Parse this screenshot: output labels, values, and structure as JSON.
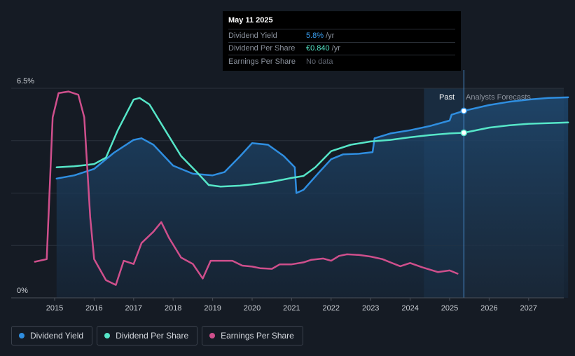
{
  "tooltip": {
    "date": "May 11 2025",
    "rows": [
      {
        "label": "Dividend Yield",
        "value": "5.8%",
        "unit": "/yr",
        "color": "#3a9ef0"
      },
      {
        "label": "Dividend Per Share",
        "value": "€0.840",
        "unit": "/yr",
        "color": "#56e6c8"
      },
      {
        "label": "Earnings Per Share",
        "value": "No data",
        "unit": "",
        "color": "#5f6570"
      }
    ]
  },
  "labels": {
    "past": "Past",
    "forecast": "Analysts Forecasts"
  },
  "legend": [
    {
      "label": "Dividend Yield",
      "color": "#2f8ee0"
    },
    {
      "label": "Dividend Per Share",
      "color": "#56e6c8"
    },
    {
      "label": "Earnings Per Share",
      "color": "#cf4f8c"
    }
  ],
  "chart_data": {
    "type": "line",
    "y_tick_labels": [
      "6.5%",
      "0%"
    ],
    "ylim": [
      0,
      6.5
    ],
    "xlim": [
      2014.0,
      2028.0
    ],
    "x_ticks": [
      2015,
      2016,
      2017,
      2018,
      2019,
      2020,
      2021,
      2022,
      2023,
      2024,
      2025,
      2026,
      2027
    ],
    "forecast_start": 2025.36,
    "shade_start": 2024.35,
    "series": [
      {
        "name": "Dividend Yield",
        "color": "#2f8ee0",
        "area": true,
        "points": [
          [
            2015.05,
            3.7
          ],
          [
            2015.5,
            3.8
          ],
          [
            2016.0,
            4.0
          ],
          [
            2016.5,
            4.5
          ],
          [
            2017.0,
            4.9
          ],
          [
            2017.2,
            4.95
          ],
          [
            2017.5,
            4.75
          ],
          [
            2018.0,
            4.1
          ],
          [
            2018.5,
            3.85
          ],
          [
            2019.0,
            3.8
          ],
          [
            2019.3,
            3.9
          ],
          [
            2019.7,
            4.4
          ],
          [
            2020.0,
            4.8
          ],
          [
            2020.4,
            4.75
          ],
          [
            2020.8,
            4.4
          ],
          [
            2021.08,
            4.05
          ],
          [
            2021.12,
            3.25
          ],
          [
            2021.3,
            3.35
          ],
          [
            2021.7,
            3.9
          ],
          [
            2022.0,
            4.3
          ],
          [
            2022.3,
            4.45
          ],
          [
            2022.7,
            4.47
          ],
          [
            2023.05,
            4.52
          ],
          [
            2023.1,
            4.95
          ],
          [
            2023.5,
            5.1
          ],
          [
            2024.0,
            5.2
          ],
          [
            2024.5,
            5.33
          ],
          [
            2025.0,
            5.5
          ],
          [
            2025.05,
            5.68
          ],
          [
            2025.36,
            5.8
          ],
          [
            2026.0,
            5.98
          ],
          [
            2026.5,
            6.08
          ],
          [
            2027.0,
            6.15
          ],
          [
            2027.5,
            6.2
          ],
          [
            2028.0,
            6.22
          ]
        ]
      },
      {
        "name": "Dividend Per Share",
        "color": "#56e6c8",
        "area": false,
        "points": [
          [
            2015.05,
            4.05
          ],
          [
            2015.5,
            4.08
          ],
          [
            2016.0,
            4.15
          ],
          [
            2016.3,
            4.35
          ],
          [
            2016.6,
            5.2
          ],
          [
            2017.0,
            6.15
          ],
          [
            2017.15,
            6.2
          ],
          [
            2017.4,
            6.0
          ],
          [
            2017.8,
            5.2
          ],
          [
            2018.2,
            4.4
          ],
          [
            2018.6,
            3.9
          ],
          [
            2018.9,
            3.5
          ],
          [
            2019.2,
            3.45
          ],
          [
            2019.7,
            3.48
          ],
          [
            2020.0,
            3.52
          ],
          [
            2020.5,
            3.6
          ],
          [
            2021.0,
            3.72
          ],
          [
            2021.3,
            3.78
          ],
          [
            2021.6,
            4.05
          ],
          [
            2022.0,
            4.55
          ],
          [
            2022.5,
            4.75
          ],
          [
            2023.0,
            4.85
          ],
          [
            2023.5,
            4.9
          ],
          [
            2024.0,
            4.98
          ],
          [
            2024.5,
            5.05
          ],
          [
            2025.0,
            5.1
          ],
          [
            2025.36,
            5.12
          ],
          [
            2026.0,
            5.28
          ],
          [
            2026.5,
            5.35
          ],
          [
            2027.0,
            5.4
          ],
          [
            2027.5,
            5.42
          ],
          [
            2028.0,
            5.44
          ]
        ]
      },
      {
        "name": "Earnings Per Share",
        "color": "#cf4f8c",
        "area": false,
        "points": [
          [
            2014.5,
            1.12
          ],
          [
            2014.8,
            1.2
          ],
          [
            2014.95,
            5.6
          ],
          [
            2015.1,
            6.35
          ],
          [
            2015.35,
            6.4
          ],
          [
            2015.6,
            6.3
          ],
          [
            2015.75,
            5.6
          ],
          [
            2015.9,
            2.5
          ],
          [
            2016.0,
            1.2
          ],
          [
            2016.3,
            0.55
          ],
          [
            2016.55,
            0.4
          ],
          [
            2016.75,
            1.15
          ],
          [
            2017.0,
            1.05
          ],
          [
            2017.2,
            1.7
          ],
          [
            2017.5,
            2.05
          ],
          [
            2017.7,
            2.35
          ],
          [
            2017.9,
            1.85
          ],
          [
            2018.2,
            1.25
          ],
          [
            2018.5,
            1.05
          ],
          [
            2018.75,
            0.6
          ],
          [
            2018.95,
            1.15
          ],
          [
            2019.5,
            1.15
          ],
          [
            2019.75,
            1.0
          ],
          [
            2020.0,
            0.97
          ],
          [
            2020.2,
            0.92
          ],
          [
            2020.5,
            0.9
          ],
          [
            2020.7,
            1.04
          ],
          [
            2021.0,
            1.04
          ],
          [
            2021.3,
            1.1
          ],
          [
            2021.5,
            1.18
          ],
          [
            2021.8,
            1.22
          ],
          [
            2022.0,
            1.15
          ],
          [
            2022.2,
            1.3
          ],
          [
            2022.4,
            1.35
          ],
          [
            2022.7,
            1.33
          ],
          [
            2023.0,
            1.28
          ],
          [
            2023.3,
            1.2
          ],
          [
            2023.5,
            1.1
          ],
          [
            2023.75,
            0.98
          ],
          [
            2024.0,
            1.08
          ],
          [
            2024.3,
            0.95
          ],
          [
            2024.7,
            0.8
          ],
          [
            2025.0,
            0.85
          ],
          [
            2025.2,
            0.75
          ]
        ]
      }
    ],
    "markers": [
      {
        "series": "Dividend Yield",
        "x": 2025.36,
        "y": 5.8
      },
      {
        "series": "Dividend Per Share",
        "x": 2025.36,
        "y": 5.12
      }
    ]
  }
}
